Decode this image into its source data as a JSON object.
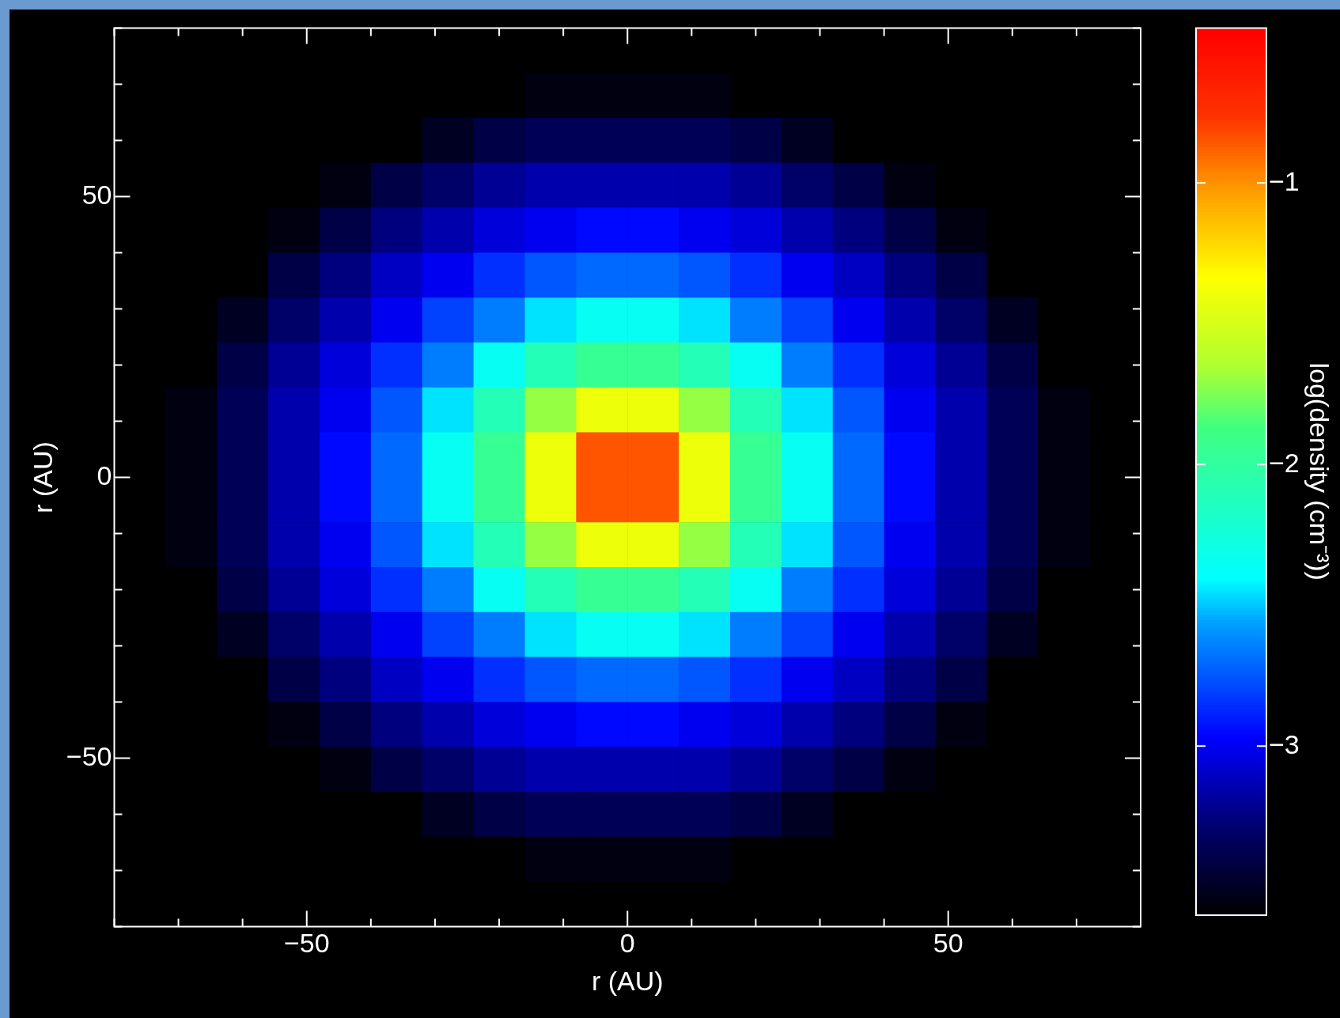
{
  "chart_data": {
    "type": "heatmap",
    "xlabel": "r (AU)",
    "ylabel": "r (AU)",
    "clabel": "log(density (cm⁻³))",
    "x": [
      -76,
      -68,
      -60,
      -52,
      -44,
      -36,
      -28,
      -20,
      -12,
      -4,
      4,
      12,
      20,
      28,
      36,
      44,
      52,
      60,
      68,
      76
    ],
    "y": [
      76,
      68,
      60,
      52,
      44,
      36,
      28,
      20,
      12,
      4,
      -4,
      -12,
      -20,
      -28,
      -36,
      -44,
      -52,
      -60,
      -68,
      -76
    ],
    "xlim": [
      -80,
      80
    ],
    "ylim": [
      -80,
      80
    ],
    "xticks": [
      {
        "value": -80,
        "label": null
      },
      {
        "value": -70,
        "label": null
      },
      {
        "value": -60,
        "label": null
      },
      -50,
      {
        "value": -40,
        "label": null
      },
      {
        "value": -30,
        "label": null
      },
      {
        "value": -20,
        "label": null
      },
      {
        "value": -10,
        "label": null
      },
      0,
      {
        "value": 10,
        "label": null
      },
      {
        "value": 20,
        "label": null
      },
      {
        "value": 30,
        "label": null
      },
      {
        "value": 40,
        "label": null
      },
      50,
      {
        "value": 60,
        "label": null
      },
      {
        "value": 70,
        "label": null
      },
      {
        "value": 80,
        "label": null
      }
    ],
    "yticks": [
      {
        "value": -80,
        "label": null
      },
      {
        "value": -70,
        "label": null
      },
      {
        "value": -60,
        "label": null
      },
      -50,
      {
        "value": -40,
        "label": null
      },
      {
        "value": -30,
        "label": null
      },
      {
        "value": -20,
        "label": null
      },
      {
        "value": -10,
        "label": null
      },
      0,
      {
        "value": 10,
        "label": null
      },
      {
        "value": 20,
        "label": null
      },
      {
        "value": 30,
        "label": null
      },
      {
        "value": 40,
        "label": null
      },
      50,
      {
        "value": 60,
        "label": null
      },
      {
        "value": 70,
        "label": null
      },
      {
        "value": 80,
        "label": null
      }
    ],
    "clim": [
      -3.6,
      -0.45
    ],
    "cticks": [
      -3,
      -2,
      -1
    ],
    "cells": [
      [
        -3.6,
        -3.6,
        -3.6,
        -3.6,
        -3.6,
        -3.6,
        -3.6,
        -3.6,
        -3.6,
        -3.6,
        -3.6,
        -3.6,
        -3.6,
        -3.6,
        -3.6,
        -3.6,
        -3.6,
        -3.6,
        -3.6,
        -3.6
      ],
      [
        -3.6,
        -3.6,
        -3.6,
        -3.6,
        -3.6,
        -3.6,
        -3.6,
        -3.6,
        -3.55,
        -3.55,
        -3.55,
        -3.55,
        -3.6,
        -3.6,
        -3.6,
        -3.6,
        -3.6,
        -3.6,
        -3.6,
        -3.6
      ],
      [
        -3.6,
        -3.6,
        -3.6,
        -3.6,
        -3.6,
        -3.6,
        -3.5,
        -3.4,
        -3.35,
        -3.35,
        -3.35,
        -3.35,
        -3.4,
        -3.5,
        -3.6,
        -3.6,
        -3.6,
        -3.6,
        -3.6,
        -3.6
      ],
      [
        -3.6,
        -3.6,
        -3.6,
        -3.6,
        -3.55,
        -3.4,
        -3.3,
        -3.2,
        -3.15,
        -3.15,
        -3.15,
        -3.15,
        -3.2,
        -3.3,
        -3.4,
        -3.55,
        -3.6,
        -3.6,
        -3.6,
        -3.6
      ],
      [
        -3.6,
        -3.6,
        -3.6,
        -3.55,
        -3.4,
        -3.25,
        -3.15,
        -3.05,
        -3.0,
        -2.95,
        -2.95,
        -3.0,
        -3.05,
        -3.15,
        -3.25,
        -3.4,
        -3.55,
        -3.6,
        -3.6,
        -3.6
      ],
      [
        -3.6,
        -3.6,
        -3.6,
        -3.4,
        -3.25,
        -3.1,
        -3.0,
        -2.85,
        -2.75,
        -2.7,
        -2.7,
        -2.75,
        -2.85,
        -3.0,
        -3.1,
        -3.25,
        -3.4,
        -3.6,
        -3.6,
        -3.6
      ],
      [
        -3.6,
        -3.6,
        -3.5,
        -3.3,
        -3.15,
        -3.0,
        -2.8,
        -2.65,
        -2.45,
        -2.35,
        -2.35,
        -2.45,
        -2.65,
        -2.8,
        -3.0,
        -3.15,
        -3.3,
        -3.5,
        -3.6,
        -3.6
      ],
      [
        -3.6,
        -3.6,
        -3.4,
        -3.2,
        -3.05,
        -2.85,
        -2.65,
        -2.35,
        -2.1,
        -1.95,
        -1.95,
        -2.1,
        -2.35,
        -2.65,
        -2.85,
        -3.05,
        -3.2,
        -3.4,
        -3.6,
        -3.6
      ],
      [
        -3.6,
        -3.55,
        -3.35,
        -3.15,
        -3.0,
        -2.75,
        -2.45,
        -2.1,
        -1.7,
        -1.4,
        -1.4,
        -1.7,
        -2.1,
        -2.45,
        -2.75,
        -3.0,
        -3.15,
        -3.35,
        -3.55,
        -3.6
      ],
      [
        -3.6,
        -3.55,
        -3.35,
        -3.15,
        -2.95,
        -2.7,
        -2.35,
        -1.95,
        -1.4,
        -0.85,
        -0.85,
        -1.4,
        -1.95,
        -2.35,
        -2.7,
        -2.95,
        -3.15,
        -3.35,
        -3.55,
        -3.6
      ],
      [
        -3.6,
        -3.55,
        -3.35,
        -3.15,
        -2.95,
        -2.7,
        -2.35,
        -1.95,
        -1.4,
        -0.85,
        -0.85,
        -1.4,
        -1.95,
        -2.35,
        -2.7,
        -2.95,
        -3.15,
        -3.35,
        -3.55,
        -3.6
      ],
      [
        -3.6,
        -3.55,
        -3.35,
        -3.15,
        -3.0,
        -2.75,
        -2.45,
        -2.1,
        -1.7,
        -1.4,
        -1.4,
        -1.7,
        -2.1,
        -2.45,
        -2.75,
        -3.0,
        -3.15,
        -3.35,
        -3.55,
        -3.6
      ],
      [
        -3.6,
        -3.6,
        -3.4,
        -3.2,
        -3.05,
        -2.85,
        -2.65,
        -2.35,
        -2.1,
        -1.95,
        -1.95,
        -2.1,
        -2.35,
        -2.65,
        -2.85,
        -3.05,
        -3.2,
        -3.4,
        -3.6,
        -3.6
      ],
      [
        -3.6,
        -3.6,
        -3.5,
        -3.3,
        -3.15,
        -3.0,
        -2.8,
        -2.65,
        -2.45,
        -2.35,
        -2.35,
        -2.45,
        -2.65,
        -2.8,
        -3.0,
        -3.15,
        -3.3,
        -3.5,
        -3.6,
        -3.6
      ],
      [
        -3.6,
        -3.6,
        -3.6,
        -3.4,
        -3.25,
        -3.1,
        -3.0,
        -2.85,
        -2.75,
        -2.7,
        -2.7,
        -2.75,
        -2.85,
        -3.0,
        -3.1,
        -3.25,
        -3.4,
        -3.6,
        -3.6,
        -3.6
      ],
      [
        -3.6,
        -3.6,
        -3.6,
        -3.55,
        -3.4,
        -3.25,
        -3.15,
        -3.05,
        -3.0,
        -2.95,
        -2.95,
        -3.0,
        -3.05,
        -3.15,
        -3.25,
        -3.4,
        -3.55,
        -3.6,
        -3.6,
        -3.6
      ],
      [
        -3.6,
        -3.6,
        -3.6,
        -3.6,
        -3.55,
        -3.4,
        -3.3,
        -3.2,
        -3.15,
        -3.15,
        -3.15,
        -3.15,
        -3.2,
        -3.3,
        -3.4,
        -3.55,
        -3.6,
        -3.6,
        -3.6,
        -3.6
      ],
      [
        -3.6,
        -3.6,
        -3.6,
        -3.6,
        -3.6,
        -3.6,
        -3.5,
        -3.4,
        -3.35,
        -3.35,
        -3.35,
        -3.35,
        -3.4,
        -3.5,
        -3.6,
        -3.6,
        -3.6,
        -3.6,
        -3.6,
        -3.6
      ],
      [
        -3.6,
        -3.6,
        -3.6,
        -3.6,
        -3.6,
        -3.6,
        -3.6,
        -3.6,
        -3.55,
        -3.55,
        -3.55,
        -3.55,
        -3.6,
        -3.6,
        -3.6,
        -3.6,
        -3.6,
        -3.6,
        -3.6,
        -3.6
      ],
      [
        -3.6,
        -3.6,
        -3.6,
        -3.6,
        -3.6,
        -3.6,
        -3.6,
        -3.6,
        -3.6,
        -3.6,
        -3.6,
        -3.6,
        -3.6,
        -3.6,
        -3.6,
        -3.6,
        -3.6,
        -3.6,
        -3.6,
        -3.6
      ]
    ]
  }
}
